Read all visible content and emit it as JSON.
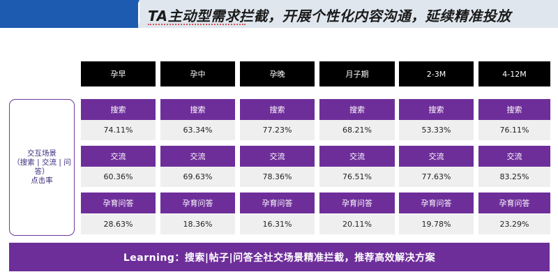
{
  "title": "TA主动型需求拦截，开展个性化内容沟通，延续精准投放",
  "row_label": {
    "line1": "交互场景",
    "line2": "（搜索 | 交流 | 问答）",
    "line3": "点击率"
  },
  "columns": [
    "孕早",
    "孕中",
    "孕晚",
    "月子期",
    "2-3M",
    "4-12M"
  ],
  "metrics": [
    {
      "label": "搜索",
      "values": [
        "74.11%",
        "63.34%",
        "77.23%",
        "68.21%",
        "53.33%",
        "76.11%"
      ]
    },
    {
      "label": "交流",
      "values": [
        "60.36%",
        "69.63%",
        "78.36%",
        "76.51%",
        "77.63%",
        "83.25%"
      ]
    },
    {
      "label": "孕育问答",
      "values": [
        "28.63%",
        "18.36%",
        "16.31%",
        "20.11%",
        "19.78%",
        "23.29%"
      ]
    }
  ],
  "footer": "Learning：搜索|帖子|问答全社交场景精准拦截，推荐高效解决方案",
  "colors": {
    "header_blue": "#1d5bb0",
    "header_grey": "#dfe6ee",
    "column_header": "#000000",
    "metric_purple": "#6e2e9a",
    "value_grey": "#efefef"
  }
}
